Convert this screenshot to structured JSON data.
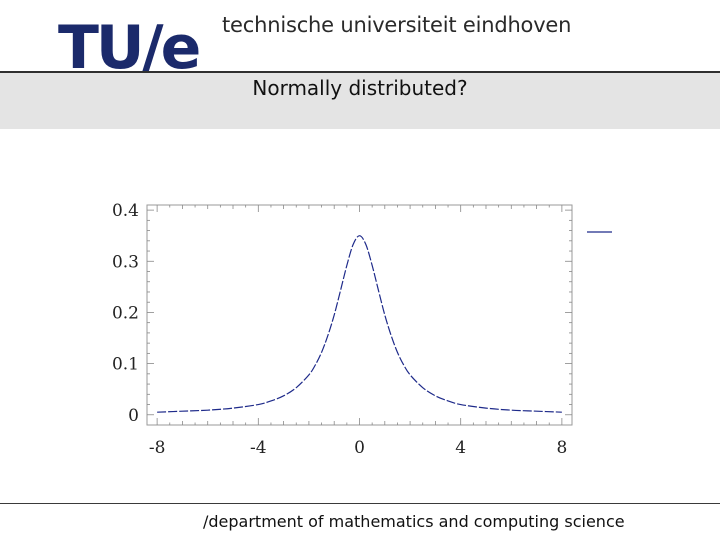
{
  "header": {
    "logo_text": "TU/e",
    "university": "technische universiteit eindhoven"
  },
  "slide": {
    "title": "Normally distributed?"
  },
  "footer": {
    "department": "/department of mathematics and computing science"
  },
  "colors": {
    "logo_blue": "#1b2a6b",
    "curve": "#1e2a8a"
  },
  "chart_data": {
    "type": "line",
    "title": "",
    "xlabel": "",
    "ylabel": "",
    "xlim": [
      -8.4,
      8.4
    ],
    "ylim": [
      -0.02,
      0.41
    ],
    "x_ticks": [
      -8,
      -4,
      0,
      4,
      8
    ],
    "x_tick_labels": [
      "-8",
      "-4",
      "0",
      "4",
      "8"
    ],
    "y_ticks": [
      0,
      0.1,
      0.2,
      0.3,
      0.4
    ],
    "y_tick_labels": [
      "0",
      "0.1",
      "0.2",
      "0.3",
      "0.4"
    ],
    "grid": false,
    "legend": "top-right",
    "series": [
      {
        "line_style": "dashed",
        "x": [
          -8,
          -7,
          -6,
          -5,
          -4,
          -3.5,
          -3,
          -2.5,
          -2,
          -1.75,
          -1.5,
          -1.25,
          -1,
          -0.75,
          -0.5,
          -0.25,
          0,
          0.25,
          0.5,
          0.75,
          1,
          1.25,
          1.5,
          1.75,
          2,
          2.5,
          3,
          3.5,
          4,
          5,
          6,
          7,
          8
        ],
        "y": [
          0.005,
          0.007,
          0.009,
          0.013,
          0.02,
          0.027,
          0.037,
          0.053,
          0.078,
          0.097,
          0.122,
          0.155,
          0.195,
          0.243,
          0.292,
          0.333,
          0.35,
          0.333,
          0.292,
          0.243,
          0.195,
          0.155,
          0.122,
          0.097,
          0.078,
          0.053,
          0.037,
          0.027,
          0.02,
          0.013,
          0.009,
          0.007,
          0.005
        ]
      }
    ]
  }
}
